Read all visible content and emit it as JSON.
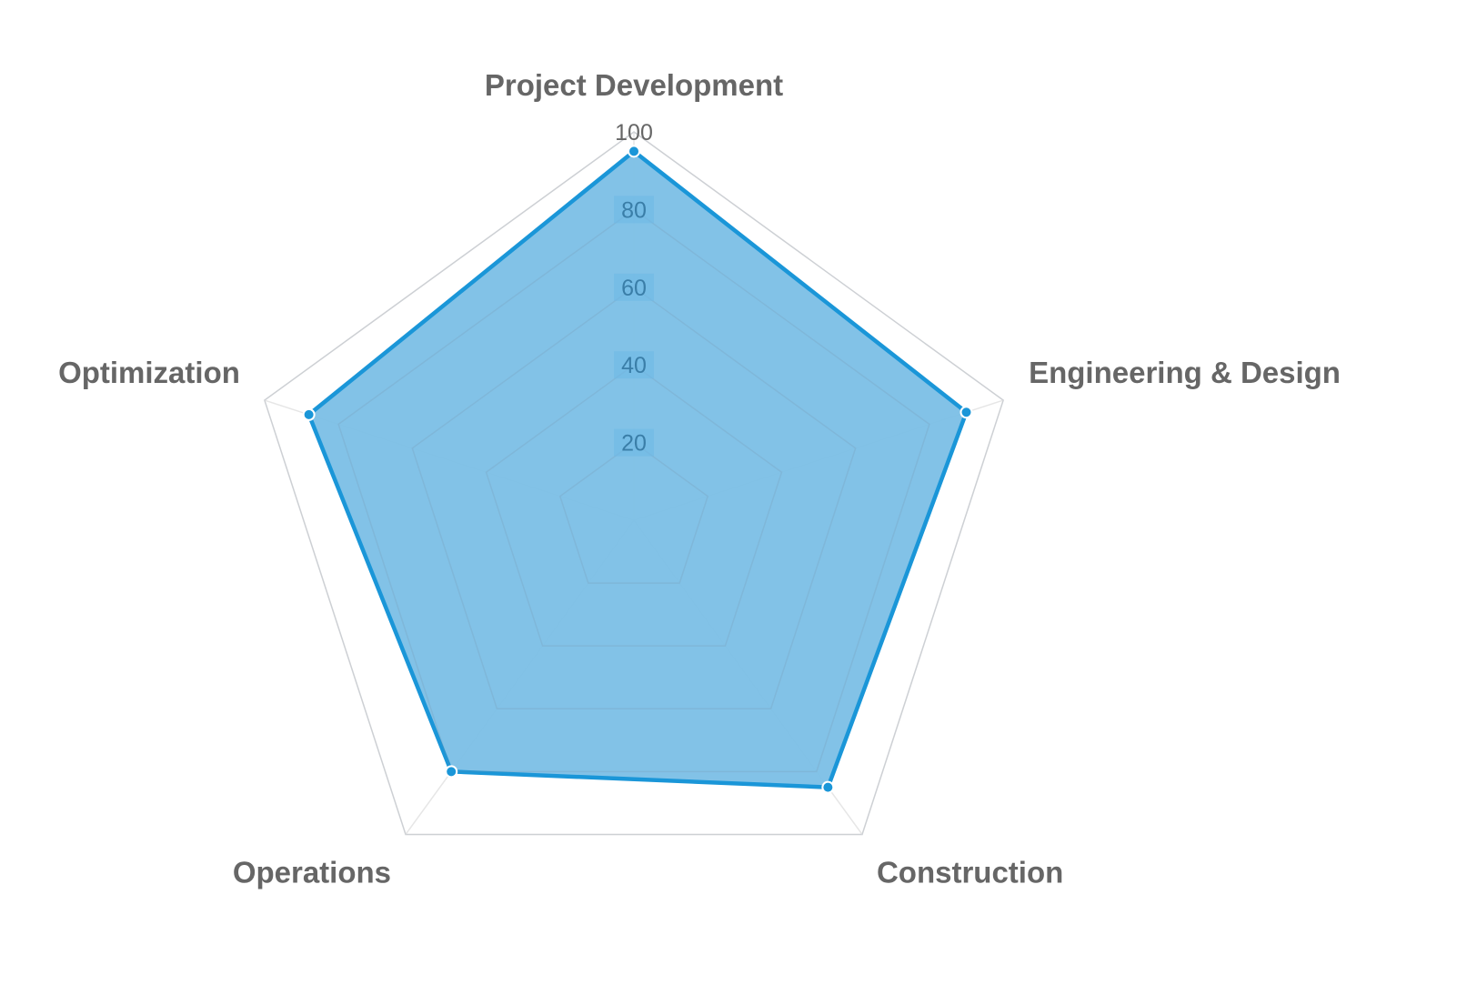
{
  "chart_data": {
    "type": "radar",
    "categories": [
      "Project Development",
      "Engineering & Design",
      "Construction",
      "Operations",
      "Optimization"
    ],
    "series": [
      {
        "values": [
          95,
          90,
          85,
          80,
          88
        ],
        "color": "#1a96d8",
        "fill": "#7bbfe6"
      }
    ],
    "rlim": [
      0,
      100
    ],
    "ticks": [
      "20",
      "40",
      "60",
      "80",
      "100"
    ],
    "grid": true,
    "legend": "none"
  }
}
